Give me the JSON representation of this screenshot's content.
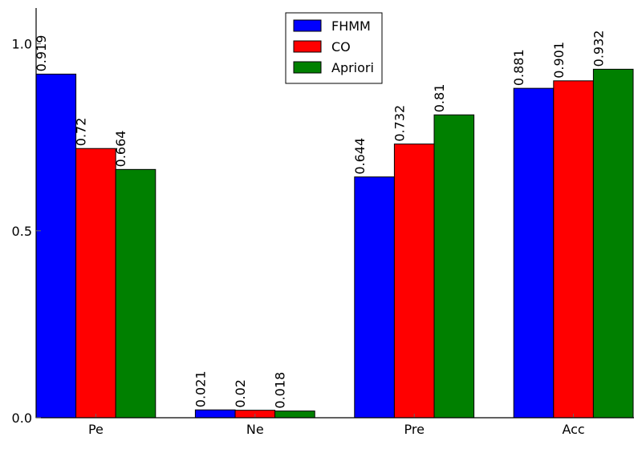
{
  "chart_data": {
    "type": "bar",
    "title": "",
    "xlabel": "",
    "ylabel": "",
    "categories": [
      "Pe",
      "Ne",
      "Pre",
      "Acc"
    ],
    "series": [
      {
        "name": "FHMM",
        "color": "#0000ff",
        "values": [
          0.919,
          0.021,
          0.644,
          0.881
        ],
        "labels": [
          "0.919",
          "0.021",
          "0.644",
          "0.881"
        ]
      },
      {
        "name": "CO",
        "color": "#ff0000",
        "values": [
          0.72,
          0.02,
          0.732,
          0.901
        ],
        "labels": [
          "0.72",
          "0.02",
          "0.732",
          "0.901"
        ]
      },
      {
        "name": "Apriori",
        "color": "#008000",
        "values": [
          0.664,
          0.018,
          0.81,
          0.932
        ],
        "labels": [
          "0.664",
          "0.018",
          "0.81",
          "0.932"
        ]
      }
    ],
    "ylim": [
      0,
      1.1
    ],
    "yticks": [
      0.0,
      0.5,
      1.0
    ],
    "ytick_labels": [
      "0.0",
      "0.5",
      "1.0"
    ],
    "grid": false,
    "legend_position": "top-center"
  }
}
